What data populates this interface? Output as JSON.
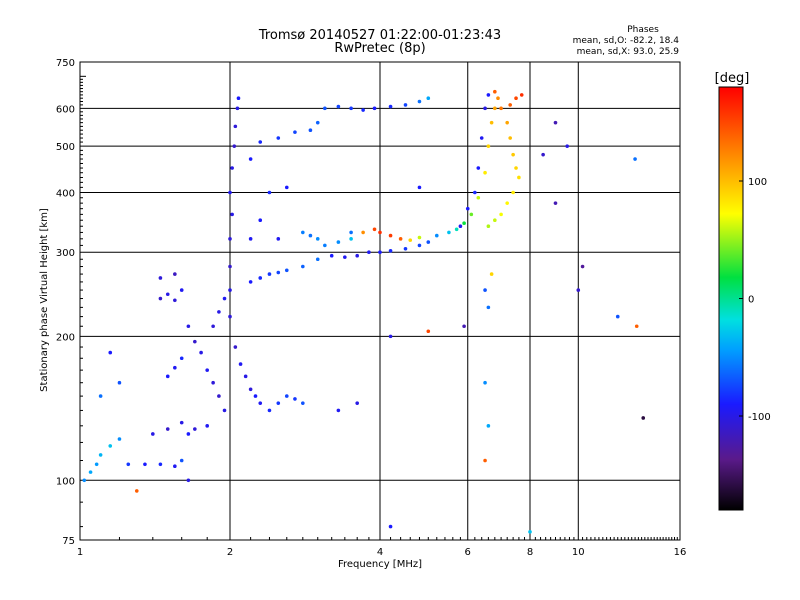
{
  "chart_data": {
    "type": "scatter",
    "title": "Tromsø 20140527 01:22:00-01:23:43",
    "subtitle": "RwPretec (8p)",
    "xlabel": "Frequency [MHz]",
    "ylabel": "Stationary phase Virtual Height [km]",
    "x_scale": "log",
    "y_scale": "log",
    "xlim": [
      1,
      16
    ],
    "ylim": [
      75,
      750
    ],
    "x_ticks": [
      1,
      2,
      4,
      6,
      8,
      10,
      16
    ],
    "y_ticks": [
      75,
      100,
      200,
      300,
      400,
      500,
      600,
      750
    ],
    "grid": true,
    "stats": {
      "heading": "Phases",
      "line_o": "mean, sd,O: -82.2, 18.4",
      "line_x": "mean, sd,X:  93.0, 25.9"
    },
    "colorbar": {
      "label": "[deg]",
      "range": [
        -180,
        180
      ],
      "ticks": [
        100,
        0,
        -100
      ],
      "colormap": "rainbow"
    },
    "series": [
      {
        "points": [
          [
            1.02,
            100,
            -50
          ],
          [
            1.05,
            104,
            -40
          ],
          [
            1.08,
            108,
            -45
          ],
          [
            1.1,
            113,
            -35
          ],
          [
            1.15,
            118,
            -30
          ],
          [
            1.2,
            122,
            -50
          ],
          [
            1.1,
            150,
            -60
          ],
          [
            1.2,
            160,
            -70
          ],
          [
            1.15,
            185,
            -90
          ],
          [
            1.25,
            108,
            -80
          ],
          [
            1.35,
            108,
            -90
          ],
          [
            1.45,
            108,
            -85
          ],
          [
            1.55,
            107,
            -95
          ],
          [
            1.6,
            110,
            -70
          ],
          [
            1.4,
            125,
            -100
          ],
          [
            1.5,
            128,
            -110
          ],
          [
            1.6,
            132,
            -100
          ],
          [
            1.65,
            125,
            -90
          ],
          [
            1.7,
            128,
            -105
          ],
          [
            1.8,
            130,
            -95
          ],
          [
            1.5,
            165,
            -90
          ],
          [
            1.55,
            172,
            -95
          ],
          [
            1.6,
            180,
            -85
          ],
          [
            1.45,
            240,
            -110
          ],
          [
            1.5,
            245,
            -100
          ],
          [
            1.55,
            238,
            -105
          ],
          [
            1.6,
            250,
            -95
          ],
          [
            1.55,
            270,
            -115
          ],
          [
            1.45,
            265,
            -105
          ],
          [
            1.65,
            210,
            -100
          ],
          [
            1.7,
            195,
            -110
          ],
          [
            1.75,
            185,
            -100
          ],
          [
            1.8,
            170,
            -95
          ],
          [
            1.85,
            160,
            -105
          ],
          [
            1.9,
            150,
            -110
          ],
          [
            1.95,
            140,
            -100
          ],
          [
            1.85,
            210,
            -105
          ],
          [
            1.9,
            225,
            -100
          ],
          [
            1.95,
            240,
            -95
          ],
          [
            2.0,
            250,
            -100
          ],
          [
            2.0,
            280,
            -110
          ],
          [
            2.0,
            320,
            -105
          ],
          [
            2.02,
            360,
            -100
          ],
          [
            2.0,
            400,
            -95
          ],
          [
            2.02,
            450,
            -100
          ],
          [
            2.04,
            500,
            -110
          ],
          [
            2.05,
            550,
            -105
          ],
          [
            2.07,
            600,
            -100
          ],
          [
            2.08,
            630,
            -90
          ],
          [
            2.0,
            220,
            -105
          ],
          [
            2.05,
            190,
            -110
          ],
          [
            2.1,
            175,
            -95
          ],
          [
            2.15,
            165,
            -100
          ],
          [
            2.2,
            155,
            -105
          ],
          [
            2.25,
            150,
            -90
          ],
          [
            2.3,
            145,
            -95
          ],
          [
            2.4,
            140,
            -85
          ],
          [
            2.5,
            145,
            -80
          ],
          [
            2.6,
            150,
            -75
          ],
          [
            2.7,
            148,
            -80
          ],
          [
            2.8,
            145,
            -70
          ],
          [
            2.2,
            260,
            -90
          ],
          [
            2.3,
            265,
            -85
          ],
          [
            2.4,
            270,
            -80
          ],
          [
            2.5,
            272,
            -75
          ],
          [
            2.6,
            275,
            -70
          ],
          [
            2.8,
            280,
            -65
          ],
          [
            3.0,
            290,
            -60
          ],
          [
            3.1,
            310,
            -55
          ],
          [
            3.0,
            320,
            -50
          ],
          [
            2.9,
            325,
            -60
          ],
          [
            2.8,
            330,
            -55
          ],
          [
            2.2,
            320,
            -95
          ],
          [
            2.3,
            350,
            -90
          ],
          [
            2.4,
            400,
            -85
          ],
          [
            2.2,
            470,
            -90
          ],
          [
            2.3,
            510,
            -85
          ],
          [
            2.5,
            520,
            -80
          ],
          [
            2.7,
            535,
            -75
          ],
          [
            2.9,
            540,
            -70
          ],
          [
            3.0,
            560,
            -65
          ],
          [
            3.1,
            600,
            -70
          ],
          [
            3.3,
            605,
            -75
          ],
          [
            3.5,
            600,
            -80
          ],
          [
            3.7,
            595,
            -85
          ],
          [
            3.9,
            600,
            -90
          ],
          [
            4.2,
            605,
            -85
          ],
          [
            4.5,
            610,
            -75
          ],
          [
            4.8,
            620,
            -60
          ],
          [
            5.0,
            630,
            -40
          ],
          [
            3.2,
            295,
            -90
          ],
          [
            3.4,
            293,
            -95
          ],
          [
            3.6,
            295,
            -100
          ],
          [
            3.8,
            300,
            -95
          ],
          [
            4.0,
            300,
            -90
          ],
          [
            4.2,
            302,
            -85
          ],
          [
            4.5,
            305,
            -80
          ],
          [
            4.8,
            310,
            -75
          ],
          [
            5.0,
            315,
            -70
          ],
          [
            3.3,
            315,
            -50
          ],
          [
            3.5,
            320,
            -30
          ],
          [
            3.7,
            330,
            120
          ],
          [
            3.9,
            335,
            150
          ],
          [
            4.0,
            330,
            160
          ],
          [
            4.2,
            325,
            155
          ],
          [
            4.4,
            320,
            140
          ],
          [
            4.6,
            318,
            90
          ],
          [
            4.8,
            322,
            60
          ],
          [
            5.2,
            325,
            -50
          ],
          [
            5.5,
            330,
            -30
          ],
          [
            5.7,
            335,
            -10
          ],
          [
            5.9,
            345,
            20
          ],
          [
            6.1,
            360,
            40
          ],
          [
            6.3,
            390,
            60
          ],
          [
            6.5,
            440,
            80
          ],
          [
            6.6,
            500,
            90
          ],
          [
            6.7,
            560,
            100
          ],
          [
            6.8,
            600,
            110
          ],
          [
            6.9,
            630,
            120
          ],
          [
            6.8,
            650,
            140
          ],
          [
            6.6,
            640,
            -90
          ],
          [
            6.5,
            600,
            -100
          ],
          [
            6.4,
            520,
            -95
          ],
          [
            6.3,
            450,
            -90
          ],
          [
            6.2,
            400,
            -85
          ],
          [
            6.0,
            370,
            -90
          ],
          [
            5.8,
            340,
            -95
          ],
          [
            7.0,
            600,
            130
          ],
          [
            7.2,
            560,
            110
          ],
          [
            7.3,
            520,
            100
          ],
          [
            7.4,
            480,
            95
          ],
          [
            7.5,
            450,
            90
          ],
          [
            7.6,
            430,
            85
          ],
          [
            7.4,
            400,
            80
          ],
          [
            7.2,
            380,
            75
          ],
          [
            7.0,
            360,
            70
          ],
          [
            6.8,
            350,
            60
          ],
          [
            6.6,
            340,
            55
          ],
          [
            7.5,
            630,
            150
          ],
          [
            7.7,
            640,
            160
          ],
          [
            7.3,
            610,
            140
          ],
          [
            6.5,
            250,
            -70
          ],
          [
            6.6,
            230,
            -60
          ],
          [
            6.5,
            160,
            -50
          ],
          [
            6.6,
            130,
            -40
          ],
          [
            6.5,
            110,
            140
          ],
          [
            6.7,
            270,
            90
          ],
          [
            5.9,
            210,
            -120
          ],
          [
            4.2,
            80,
            -90
          ],
          [
            5.0,
            205,
            150
          ],
          [
            8.5,
            480,
            -110
          ],
          [
            9.0,
            560,
            -120
          ],
          [
            9.5,
            500,
            -100
          ],
          [
            10.2,
            280,
            -130
          ],
          [
            10.0,
            250,
            -110
          ],
          [
            13.0,
            470,
            -60
          ],
          [
            13.1,
            210,
            140
          ],
          [
            13.5,
            135,
            -160
          ],
          [
            12.0,
            220,
            -70
          ],
          [
            9.0,
            380,
            -120
          ],
          [
            8.0,
            78,
            -30
          ],
          [
            3.5,
            330,
            -60
          ],
          [
            4.2,
            200,
            -100
          ],
          [
            4.8,
            410,
            -90
          ],
          [
            2.5,
            320,
            -95
          ],
          [
            2.6,
            410,
            -90
          ],
          [
            1.3,
            95,
            140
          ],
          [
            1.65,
            100,
            -100
          ],
          [
            3.3,
            140,
            -95
          ],
          [
            3.6,
            145,
            -100
          ]
        ]
      }
    ]
  }
}
